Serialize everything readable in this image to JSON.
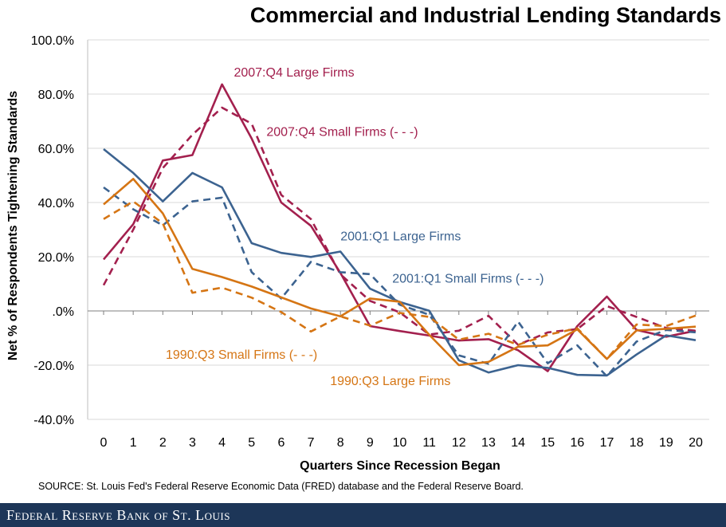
{
  "chart_data": {
    "type": "line",
    "title": "Commercial and Industrial Lending Standards",
    "xlabel": "Quarters Since Recession Began",
    "ylabel": "Net % of Respondents Tightening Standards",
    "ylim": [
      -40,
      100
    ],
    "yticks": [
      -40,
      -20,
      0,
      20,
      40,
      60,
      80,
      100
    ],
    "ytick_labels": [
      "-40.0%",
      "-20.0%",
      ".0%",
      "20.0%",
      "40.0%",
      "60.0%",
      "80.0%",
      "100.0%"
    ],
    "x": [
      0,
      1,
      2,
      3,
      4,
      5,
      6,
      7,
      8,
      9,
      10,
      11,
      12,
      13,
      14,
      15,
      16,
      17,
      18,
      19,
      20
    ],
    "xtick_labels": [
      "0",
      "1",
      "2",
      "3",
      "4",
      "5",
      "6",
      "7",
      "8",
      "9",
      "10",
      "11",
      "12",
      "13",
      "14",
      "15",
      "16",
      "17",
      "18",
      "19",
      "20"
    ],
    "grid": true,
    "series": [
      {
        "name": "2007:Q4 Large Firms",
        "color": "#a3204e",
        "dash": "solid",
        "values": [
          19,
          32,
          55.5,
          57.5,
          83.6,
          63.6,
          40,
          31.4,
          14,
          -5.6,
          -7.4,
          -9.1,
          -10.9,
          -10.4,
          -14.5,
          -22.2,
          -5.6,
          5.3,
          -7,
          -9.5,
          -7.3
        ]
      },
      {
        "name": "2007:Q4 Small Firms",
        "color": "#a3204e",
        "dash": "dashed",
        "values": [
          9.5,
          30,
          52.7,
          65,
          75,
          69.1,
          42.8,
          33.9,
          13.5,
          3.7,
          -0.5,
          -8.7,
          -7.3,
          -1.8,
          -12.5,
          -7.9,
          -6.7,
          1.8,
          -2.2,
          -6.3,
          -7.3
        ]
      },
      {
        "name": "2001:Q1 Large Firms",
        "color": "#3c6390",
        "dash": "solid",
        "values": [
          59.7,
          50.9,
          40.4,
          50.9,
          45.6,
          25,
          21.4,
          19.9,
          21.9,
          8.2,
          3.3,
          0.1,
          -18.2,
          -22.7,
          -20,
          -21,
          -23.6,
          -23.8,
          -16.1,
          -9,
          -10.8
        ]
      },
      {
        "name": "2001:Q1 Small Firms",
        "color": "#3c6390",
        "dash": "dashed",
        "values": [
          45.6,
          37.5,
          31.6,
          40.4,
          41.8,
          14.3,
          4.6,
          18.1,
          14.3,
          13.6,
          2.3,
          -1.4,
          -16.4,
          -19.5,
          -3.9,
          -19.3,
          -12.7,
          -24.1,
          -11.3,
          -7,
          -7.9
        ]
      },
      {
        "name": "1990:Q3 Large Firms",
        "color": "#d57514",
        "dash": "solid",
        "values": [
          39.3,
          48.7,
          36,
          15.5,
          12.5,
          9,
          5,
          0.9,
          -2,
          4.6,
          3.4,
          -8.8,
          -20,
          -18.8,
          -13.2,
          -12.7,
          -6.8,
          -17.7,
          -7.2,
          -6.6,
          -5.8
        ]
      },
      {
        "name": "1990:Q3 Small Firms",
        "color": "#d57514",
        "dash": "dashed",
        "values": [
          33.9,
          40.4,
          32.3,
          6.7,
          8.6,
          4.9,
          -0.4,
          -7.6,
          -2,
          -5.4,
          -0.7,
          -2.2,
          -10.6,
          -8.4,
          -12.5,
          -8.8,
          -6.4,
          -17.7,
          -5,
          -5.6,
          -1.7
        ]
      }
    ],
    "annotations": [
      {
        "text": "2007:Q4 Large Firms",
        "color": "#a3204e",
        "x": 4.4,
        "y": 86.5
      },
      {
        "text": "2007:Q4 Small Firms (- - -)",
        "color": "#a3204e",
        "x": 5.5,
        "y": 64.5
      },
      {
        "text": "2001:Q1 Large Firms",
        "color": "#3c6390",
        "x": 8.0,
        "y": 26.1
      },
      {
        "text": "2001:Q1 Small Firms (- - -)",
        "color": "#3c6390",
        "x": 9.75,
        "y": 10.4
      },
      {
        "text": "1990:Q3 Small Firms (- - -)",
        "color": "#d57514",
        "x": 2.1,
        "y": -17.6
      },
      {
        "text": "1990:Q3 Large Firms",
        "color": "#d57514",
        "x": 7.65,
        "y": -27.3
      }
    ]
  },
  "source": "SOURCE: St. Louis Fed's Federal Reserve Economic Data (FRED) database and the Federal Reserve Board.",
  "footer": "Federal Reserve Bank of St. Louis",
  "colors": {
    "footer_bg": "#1d3658",
    "grid": "#d9d9d9"
  }
}
